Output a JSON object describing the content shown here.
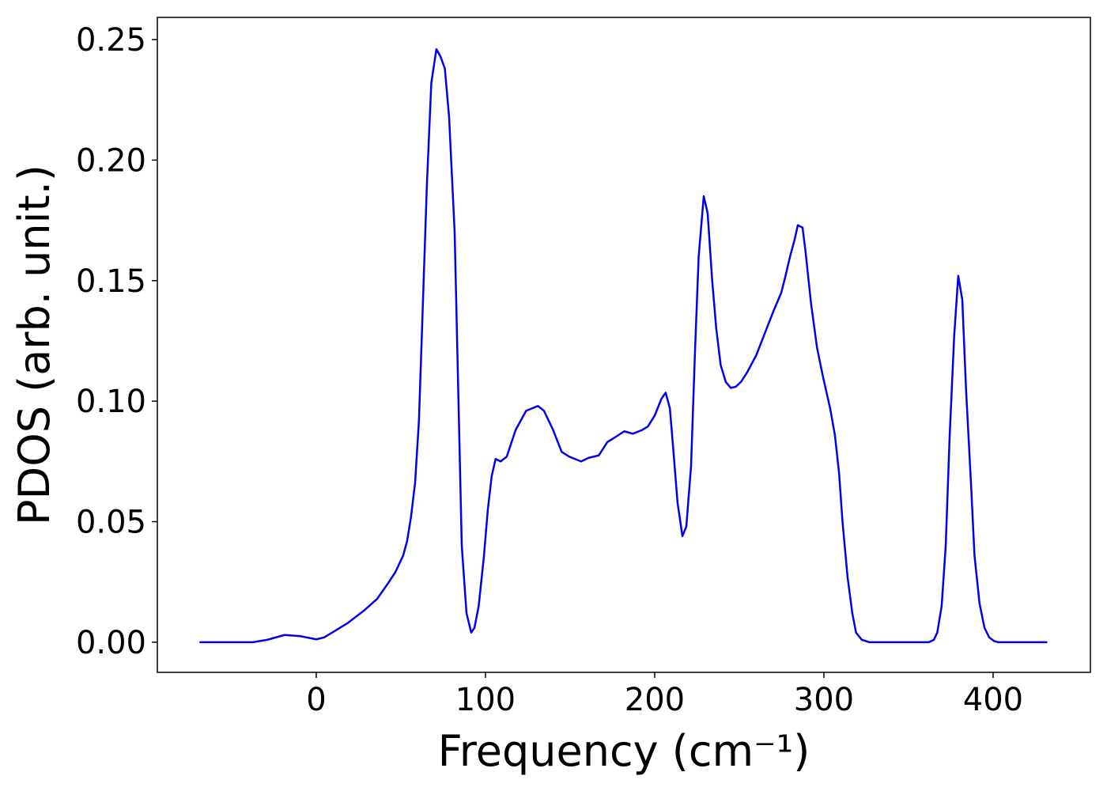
{
  "chart_data": {
    "type": "line",
    "xlabel": "Frequency (cm⁻¹)",
    "ylabel": "PDOS (arb. unit.)",
    "xlim": [
      -93.9,
      457.5
    ],
    "ylim": [
      -0.0125,
      0.2592
    ],
    "xticks": [
      0,
      100,
      200,
      300,
      400
    ],
    "yticks": [
      {
        "value": 0,
        "label": "0.00"
      },
      {
        "value": 0.05,
        "label": "0.05"
      },
      {
        "value": 0.1,
        "label": "0.10"
      },
      {
        "value": 0.15,
        "label": "0.15"
      },
      {
        "value": 0.2,
        "label": "0.20"
      },
      {
        "value": 0.25,
        "label": "0.25"
      }
    ],
    "grid": false,
    "series": [
      {
        "color": "#0000ee",
        "x": [
          -69,
          -37.4,
          -29,
          -18.7,
          -9.3,
          0,
          4.7,
          11.7,
          18.7,
          28,
          36,
          42,
          46.7,
          51.4,
          53.7,
          56,
          58.4,
          60.7,
          63,
          65.4,
          68,
          71,
          73.4,
          76,
          78.5,
          81.8,
          86,
          88.8,
          91.6,
          93.5,
          96,
          99,
          101.4,
          103.7,
          106,
          109,
          112.6,
          117.8,
          124,
          131,
          134.6,
          140,
          145,
          149.5,
          156.5,
          161,
          167,
          172,
          176.6,
          182,
          187,
          192.5,
          196,
          200,
          204,
          206.5,
          209,
          211,
          213.5,
          216.4,
          218.7,
          221.5,
          223.8,
          226,
          229,
          231.3,
          234,
          236.4,
          239,
          242,
          245,
          248,
          251,
          254.7,
          260,
          265,
          270,
          274.8,
          277,
          280,
          282.7,
          284.6,
          287.4,
          289,
          292.5,
          296,
          299.5,
          303.7,
          306.5,
          309,
          311,
          314,
          316.8,
          319,
          322.4,
          327,
          362,
          365,
          367,
          369.6,
          372,
          374.3,
          377,
          379.4,
          381.8,
          384,
          387,
          389,
          392,
          394.9,
          397.7,
          400.5,
          403,
          432
        ],
        "values": [
          0,
          0,
          0.001,
          0.003,
          0.0025,
          0.0012,
          0.002,
          0.005,
          0.008,
          0.013,
          0.018,
          0.024,
          0.029,
          0.036,
          0.042,
          0.052,
          0.066,
          0.092,
          0.14,
          0.19,
          0.232,
          0.246,
          0.243,
          0.238,
          0.218,
          0.17,
          0.04,
          0.012,
          0.004,
          0.006,
          0.015,
          0.035,
          0.055,
          0.069,
          0.076,
          0.075,
          0.077,
          0.088,
          0.096,
          0.098,
          0.096,
          0.088,
          0.079,
          0.077,
          0.075,
          0.0765,
          0.0775,
          0.083,
          0.085,
          0.0875,
          0.0865,
          0.088,
          0.0895,
          0.094,
          0.101,
          0.1035,
          0.097,
          0.08,
          0.058,
          0.044,
          0.048,
          0.073,
          0.12,
          0.16,
          0.185,
          0.178,
          0.15,
          0.13,
          0.115,
          0.108,
          0.1055,
          0.106,
          0.108,
          0.112,
          0.119,
          0.128,
          0.137,
          0.145,
          0.151,
          0.16,
          0.167,
          0.173,
          0.172,
          0.163,
          0.14,
          0.122,
          0.11,
          0.097,
          0.086,
          0.07,
          0.05,
          0.027,
          0.012,
          0.004,
          0.001,
          0,
          0,
          0.001,
          0.004,
          0.015,
          0.04,
          0.085,
          0.127,
          0.152,
          0.142,
          0.105,
          0.065,
          0.036,
          0.016,
          0.006,
          0.002,
          0.0005,
          0,
          0
        ]
      }
    ]
  }
}
